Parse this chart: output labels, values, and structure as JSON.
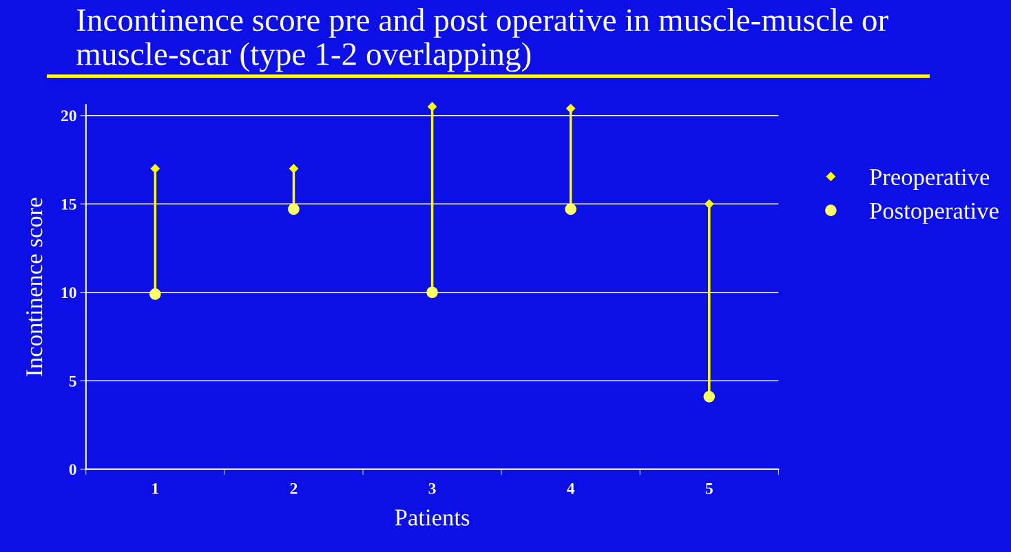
{
  "chart_data": {
    "type": "scatter",
    "title": "Incontinence score pre and post operative in muscle-muscle or muscle-scar (type 1-2 overlapping)",
    "xlabel": "Patients",
    "ylabel": "Incontinence score",
    "categories": [
      "1",
      "2",
      "3",
      "4",
      "5"
    ],
    "series": [
      {
        "name": "Preoperative",
        "color": "#ffff00",
        "marker": "diamond",
        "values": [
          17,
          17,
          20.5,
          20.4,
          15
        ]
      },
      {
        "name": "Postoperative",
        "color": "#ffff66",
        "marker": "circle",
        "values": [
          9.9,
          14.7,
          10,
          14.7,
          4.1
        ]
      }
    ],
    "ylim": [
      0,
      20.6
    ],
    "yticks": [
      0,
      5,
      10,
      15,
      20
    ],
    "grid": "y",
    "legend": "right"
  }
}
